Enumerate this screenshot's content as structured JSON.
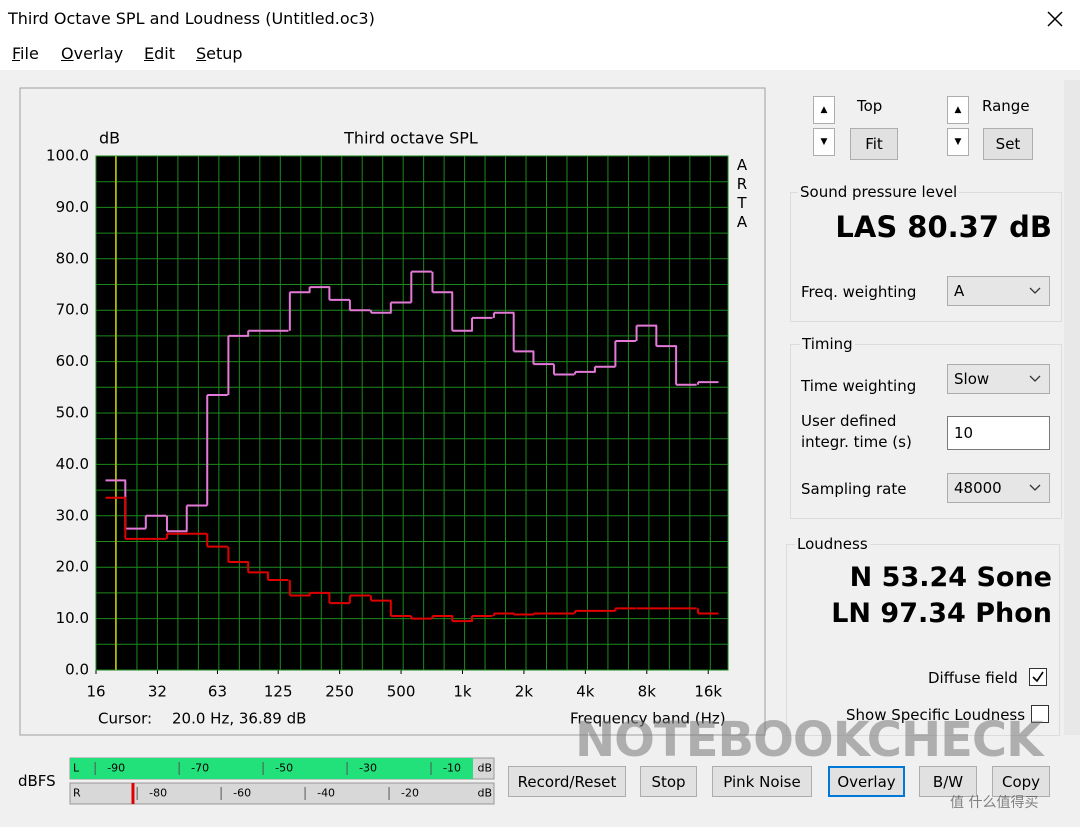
{
  "window": {
    "title": "Third Octave SPL and Loudness (Untitled.oc3)"
  },
  "menu": [
    "File",
    "Overlay",
    "Edit",
    "Setup"
  ],
  "chart_data": {
    "type": "step",
    "title": "Third octave SPL",
    "y_label": "dB",
    "x_label": "Frequency band (Hz)",
    "side_label": "ARTA",
    "log_x": true,
    "grid": true,
    "background": "#000000",
    "grid_color": "#1c8a1c",
    "x": [
      20,
      25,
      31.5,
      40,
      50,
      63,
      80,
      100,
      125,
      160,
      200,
      250,
      315,
      400,
      500,
      630,
      800,
      1000,
      1250,
      1600,
      2000,
      2500,
      3150,
      4000,
      5000,
      6300,
      8000,
      10000,
      12500,
      16000
    ],
    "series": [
      {
        "color": "#e47ad8",
        "values": [
          36.89,
          27.5,
          30,
          27,
          32,
          53.5,
          65,
          66,
          66,
          73.5,
          74.5,
          72,
          70,
          69.5,
          71.5,
          77.5,
          73.5,
          66,
          68.5,
          69.5,
          62,
          59.5,
          57.5,
          58,
          59,
          64,
          67,
          63,
          55.5,
          56
        ]
      },
      {
        "color": "#e00000",
        "values": [
          33.5,
          25.5,
          25.5,
          26.5,
          26.5,
          24,
          21,
          19,
          17.5,
          14.5,
          15,
          13,
          14.5,
          13.5,
          10.5,
          10,
          10.5,
          9.5,
          10.5,
          11,
          10.8,
          11,
          11,
          11.5,
          11.5,
          12,
          12,
          12,
          12,
          11
        ]
      }
    ],
    "xlim": [
      16,
      20000
    ],
    "xticks": [
      16,
      32,
      63,
      125,
      250,
      500,
      {
        "value": 1000,
        "label": "1k"
      },
      {
        "value": 2000,
        "label": "2k"
      },
      {
        "value": 4000,
        "label": "4k"
      },
      {
        "value": 8000,
        "label": "8k"
      },
      {
        "value": 16000,
        "label": "16k"
      }
    ],
    "ylim": [
      0,
      100
    ],
    "yticks": [
      {
        "value": 0,
        "label": "0.0"
      },
      {
        "value": 10,
        "label": "10.0"
      },
      {
        "value": 20,
        "label": "20.0"
      },
      {
        "value": 30,
        "label": "30.0"
      },
      {
        "value": 40,
        "label": "40.0"
      },
      {
        "value": 50,
        "label": "50.0"
      },
      {
        "value": 60,
        "label": "60.0"
      },
      {
        "value": 70,
        "label": "70.0"
      },
      {
        "value": 80,
        "label": "80.0"
      },
      {
        "value": 90,
        "label": "90.0"
      },
      {
        "value": 100,
        "label": "100.0"
      }
    ],
    "cursor": {
      "label": "Cursor:",
      "readout": "20.0 Hz, 36.89 dB",
      "color": "#c8b400"
    }
  },
  "controls": {
    "top": "Top",
    "fit": "Fit",
    "range": "Range",
    "set": "Set"
  },
  "spl": {
    "title": "Sound pressure level",
    "reading": "LAS 80.37 dB",
    "weighting_label": "Freq. weighting",
    "weighting": "A"
  },
  "timing": {
    "title": "Timing",
    "time_weighting_label": "Time weighting",
    "time_weighting": "Slow",
    "integration_label": "User defined\nintegr. time (s)",
    "integration": "10",
    "sampling_label": "Sampling rate",
    "sampling": "48000"
  },
  "loudness": {
    "title": "Loudness",
    "n": "N 53.24 Sone",
    "ln": "LN 97.34 Phon",
    "diffuse_label": "Diffuse field",
    "diffuse_checked": true,
    "specific_label": "Show Specific Loudness",
    "specific_checked": false
  },
  "meter": {
    "label": "dBFS",
    "xlim": [
      -101,
      0
    ],
    "channels": [
      {
        "name": "L",
        "level": -5,
        "color": "#22e07a",
        "ticks": [
          -90,
          -70,
          -50,
          -30,
          -10
        ],
        "end_label": "dB"
      },
      {
        "name": "R",
        "level": -86,
        "color": "#e00000",
        "ticks": [
          -80,
          -60,
          -40,
          -20
        ],
        "end_label": "dB"
      }
    ]
  },
  "buttons": [
    "Record/Reset",
    "Stop",
    "Pink Noise",
    "Overlay",
    "B/W",
    "Copy"
  ],
  "watermarks": [
    "NOTEBOOKCHECK",
    "值 什么值得买"
  ]
}
